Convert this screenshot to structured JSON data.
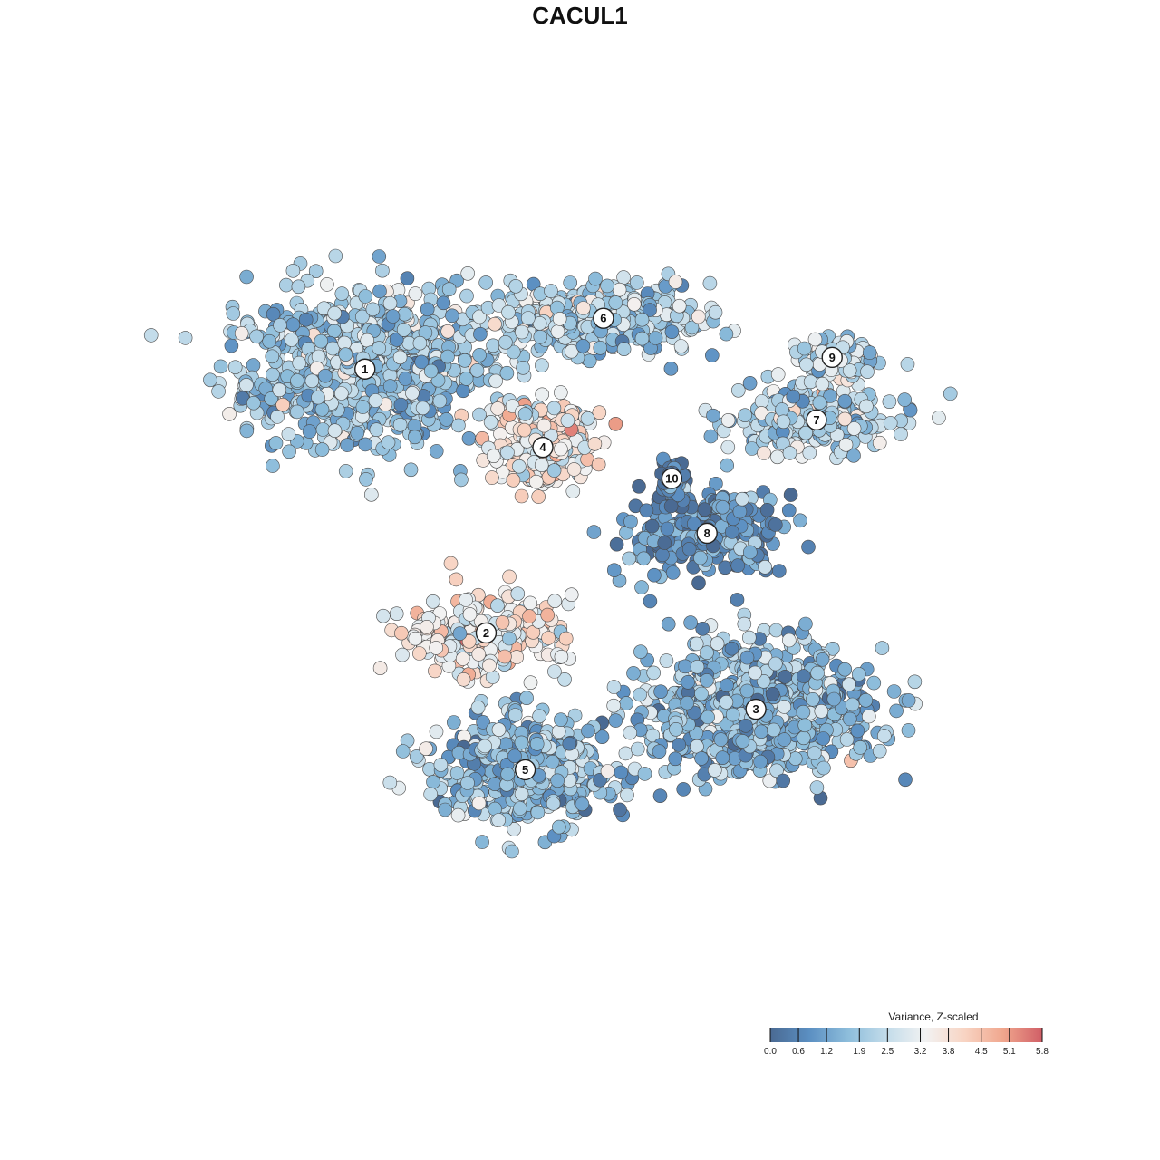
{
  "chart_data": {
    "type": "scatter",
    "title": "CACUL1",
    "legend": {
      "title": "Variance, Z-scaled",
      "ticks": [
        "0.0",
        "0.6",
        "1.2",
        "1.9",
        "2.5",
        "3.2",
        "3.8",
        "4.5",
        "5.1",
        "5.8"
      ],
      "min": 0.0,
      "max": 5.8,
      "placement": "bottom-right",
      "colors": [
        "#4a6a93",
        "#5b8fc2",
        "#8dbddb",
        "#c3dcea",
        "#f2f2f2",
        "#f8d4c3",
        "#f0a68d",
        "#d05e66"
      ]
    },
    "clusters": [
      {
        "label": "1",
        "x": -11.5,
        "y": 8.9,
        "mean": 2.0,
        "spread": [
          5.6,
          3.6
        ],
        "n": 900
      },
      {
        "label": "2",
        "x": -5.3,
        "y": -4.6,
        "mean": 3.4,
        "spread": [
          3.8,
          1.8
        ],
        "n": 240
      },
      {
        "label": "3",
        "x": 8.5,
        "y": -8.5,
        "mean": 1.7,
        "spread": [
          5.2,
          3.0
        ],
        "n": 820
      },
      {
        "label": "4",
        "x": -2.4,
        "y": 4.9,
        "mean": 3.5,
        "spread": [
          2.2,
          2.0
        ],
        "n": 260
      },
      {
        "label": "5",
        "x": -3.3,
        "y": -11.6,
        "mean": 1.8,
        "spread": [
          4.2,
          2.4
        ],
        "n": 560
      },
      {
        "label": "6",
        "x": 0.7,
        "y": 11.5,
        "mean": 2.2,
        "spread": [
          4.6,
          1.6
        ],
        "n": 420
      },
      {
        "label": "7",
        "x": 11.6,
        "y": 6.3,
        "mean": 2.3,
        "spread": [
          3.8,
          1.5
        ],
        "n": 260
      },
      {
        "label": "8",
        "x": 6.0,
        "y": 0.5,
        "mean": 0.8,
        "spread": [
          3.4,
          1.8
        ],
        "n": 300
      },
      {
        "label": "9",
        "x": 12.4,
        "y": 9.5,
        "mean": 2.6,
        "spread": [
          1.8,
          0.9
        ],
        "n": 120
      },
      {
        "label": "10",
        "x": 4.2,
        "y": 3.3,
        "mean": 0.4,
        "spread": [
          0.6,
          0.8
        ],
        "n": 60
      }
    ],
    "xlim": [
      -26,
      25
    ],
    "ylim": [
      -26,
      25
    ],
    "grid": false,
    "axes_visible": false
  }
}
